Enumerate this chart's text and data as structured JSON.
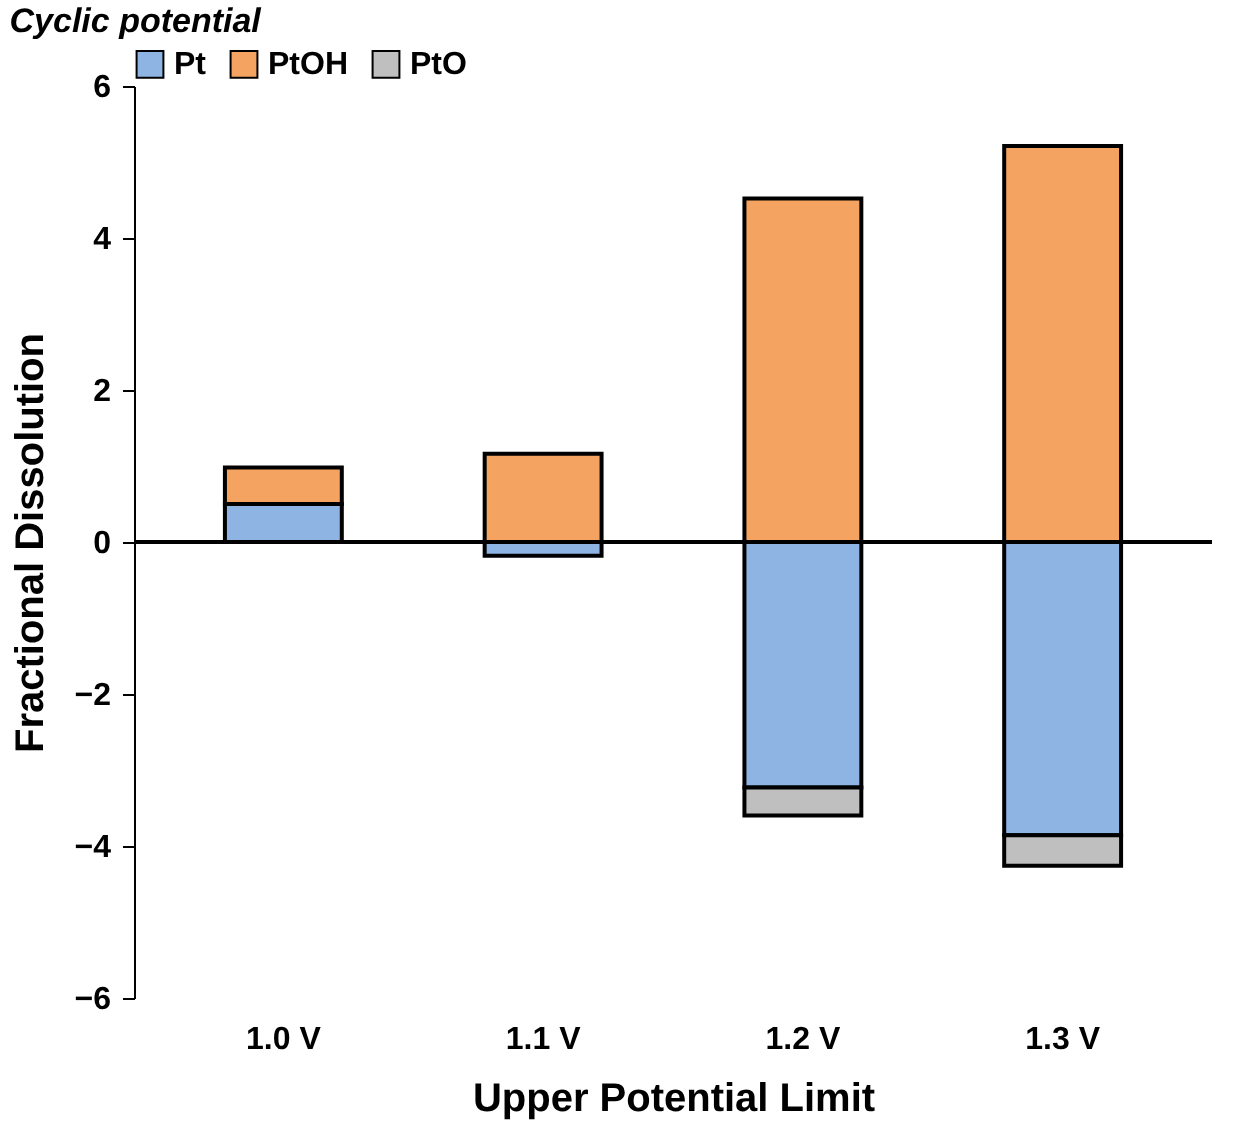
{
  "chart_data": {
    "type": "bar",
    "title": "Cyclic potential",
    "xlabel": "Upper Potential Limit",
    "ylabel": "Fractional Dissolution",
    "categories": [
      "1.0 V",
      "1.1 V",
      "1.2 V",
      "1.3 V"
    ],
    "stacked": true,
    "series": [
      {
        "name": "Pt",
        "color": "#8db4e2",
        "values": [
          0.5,
          -0.18,
          -3.23,
          -3.86
        ]
      },
      {
        "name": "PtOH",
        "color": "#f4a460",
        "values": [
          0.48,
          1.16,
          4.52,
          5.21
        ]
      },
      {
        "name": "PtO",
        "color": "#bfbfbf",
        "values": [
          null,
          null,
          -0.37,
          -0.4
        ]
      }
    ],
    "ylim": [
      -6,
      6
    ],
    "yticks": [
      -6,
      -4,
      -2,
      0,
      2,
      4,
      6
    ],
    "grid": false,
    "legend": "top",
    "ref_lines": [
      {
        "axis": "y",
        "value": 0
      }
    ]
  }
}
